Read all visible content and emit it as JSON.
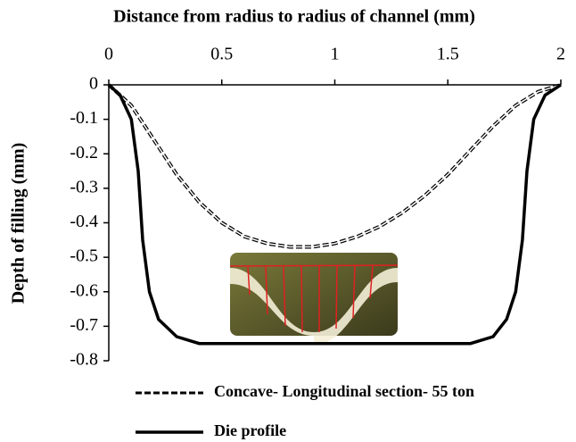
{
  "chart_data": {
    "type": "line",
    "xlabel": "Distance from radius to radius of channel (mm)",
    "ylabel": "Depth of filling (mm)",
    "xlim": [
      0,
      2
    ],
    "xticks": [
      0,
      0.5,
      1,
      1.5,
      2
    ],
    "ylim": [
      -0.8,
      0
    ],
    "yticks": [
      0,
      -0.1,
      -0.2,
      -0.3,
      -0.4,
      -0.5,
      -0.6,
      -0.7,
      -0.8
    ],
    "series": [
      {
        "name": "Concave- Longitudinal section- 55 ton",
        "color": "#000000",
        "dash": true,
        "x": [
          0,
          0.1,
          0.2,
          0.3,
          0.4,
          0.5,
          0.6,
          0.7,
          0.8,
          0.9,
          1.0,
          1.1,
          1.2,
          1.3,
          1.4,
          1.5,
          1.6,
          1.7,
          1.8,
          1.9,
          2.0
        ],
        "values": [
          0,
          -0.06,
          -0.16,
          -0.26,
          -0.34,
          -0.4,
          -0.44,
          -0.46,
          -0.47,
          -0.47,
          -0.46,
          -0.44,
          -0.41,
          -0.37,
          -0.32,
          -0.26,
          -0.19,
          -0.12,
          -0.06,
          -0.02,
          0
        ]
      },
      {
        "name": "Die profile",
        "color": "#000000",
        "dash": false,
        "x": [
          0,
          0.05,
          0.1,
          0.13,
          0.15,
          0.18,
          0.22,
          0.3,
          0.4,
          1.0,
          1.6,
          1.7,
          1.76,
          1.8,
          1.83,
          1.85,
          1.88,
          1.93,
          2.0
        ],
        "values": [
          0,
          -0.03,
          -0.1,
          -0.25,
          -0.45,
          -0.6,
          -0.68,
          -0.73,
          -0.75,
          -0.75,
          -0.75,
          -0.73,
          -0.68,
          -0.6,
          -0.45,
          -0.25,
          -0.1,
          -0.03,
          0
        ]
      }
    ]
  }
}
